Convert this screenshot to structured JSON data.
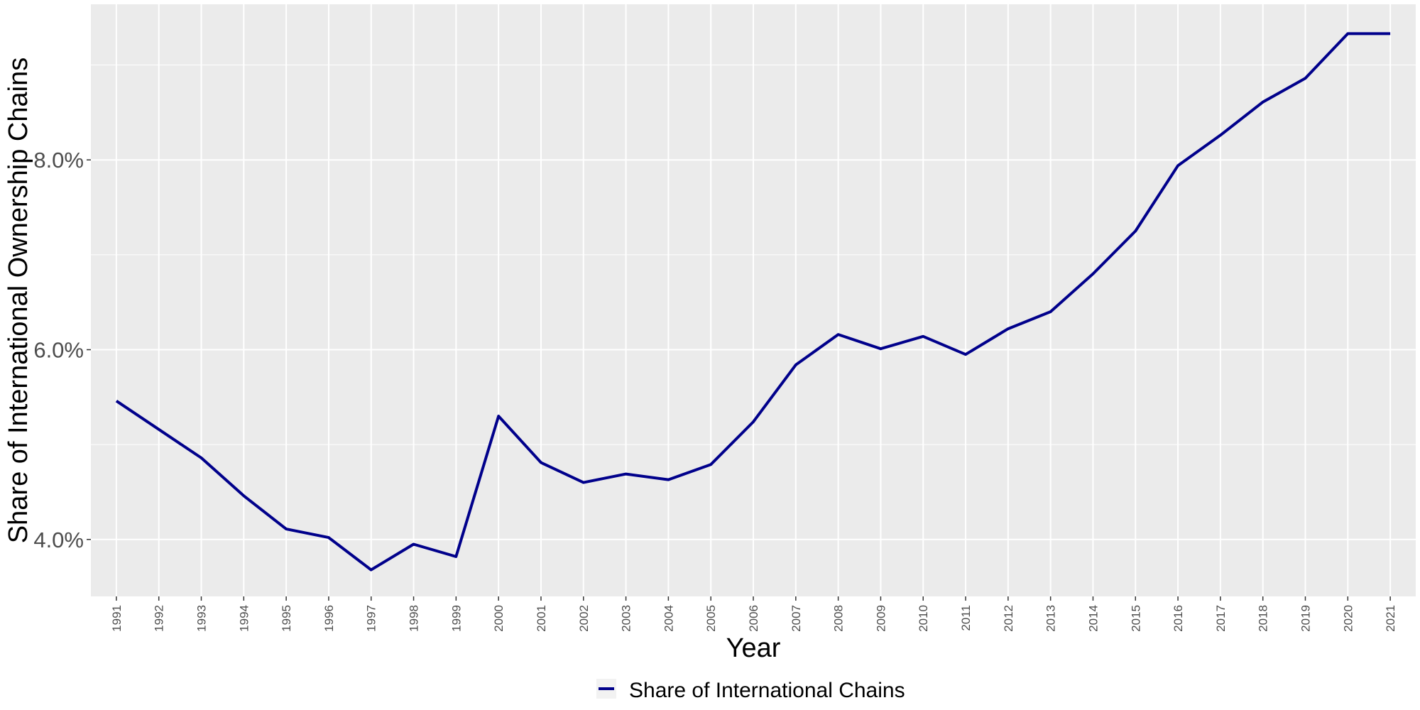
{
  "chart_data": {
    "type": "line",
    "title": "",
    "xlabel": "Year",
    "ylabel": "Share of International Ownership Chains",
    "x": [
      1991,
      1992,
      1993,
      1994,
      1995,
      1996,
      1997,
      1998,
      1999,
      2000,
      2001,
      2002,
      2003,
      2004,
      2005,
      2006,
      2007,
      2008,
      2009,
      2010,
      2011,
      2012,
      2013,
      2014,
      2015,
      2016,
      2017,
      2018,
      2019,
      2020,
      2021
    ],
    "x_tick_labels": [
      "1991",
      "1992",
      "1993",
      "1994",
      "1995",
      "1996",
      "1997",
      "1998",
      "1999",
      "2000",
      "2001",
      "2002",
      "2003",
      "2004",
      "2005",
      "2006",
      "2007",
      "2008",
      "2009",
      "2010",
      "2011",
      "2012",
      "2013",
      "2014",
      "2015",
      "2016",
      "2017",
      "2018",
      "2019",
      "2020",
      "2021"
    ],
    "y_ticks": [
      4.0,
      6.0,
      8.0
    ],
    "y_tick_labels": [
      "4.0%",
      "6.0%",
      "8.0%"
    ],
    "ylim": [
      3.4,
      9.64
    ],
    "y_unit": "percent",
    "grid": true,
    "legend_position": "bottom",
    "series": [
      {
        "name": "Share of International Chains",
        "color": "#00008B",
        "values": [
          5.46,
          5.16,
          4.86,
          4.46,
          4.11,
          4.02,
          3.68,
          3.95,
          3.82,
          5.3,
          4.81,
          4.6,
          4.69,
          4.63,
          4.79,
          5.24,
          5.84,
          6.16,
          6.01,
          6.14,
          5.95,
          6.22,
          6.4,
          6.8,
          7.25,
          7.94,
          8.26,
          8.61,
          8.86,
          9.33,
          9.33
        ]
      }
    ],
    "colors": {
      "panel_background": "#EBEBEB",
      "grid": "#FFFFFF",
      "tick_text": "#4D4D4D",
      "tick_mark": "#333333"
    }
  }
}
